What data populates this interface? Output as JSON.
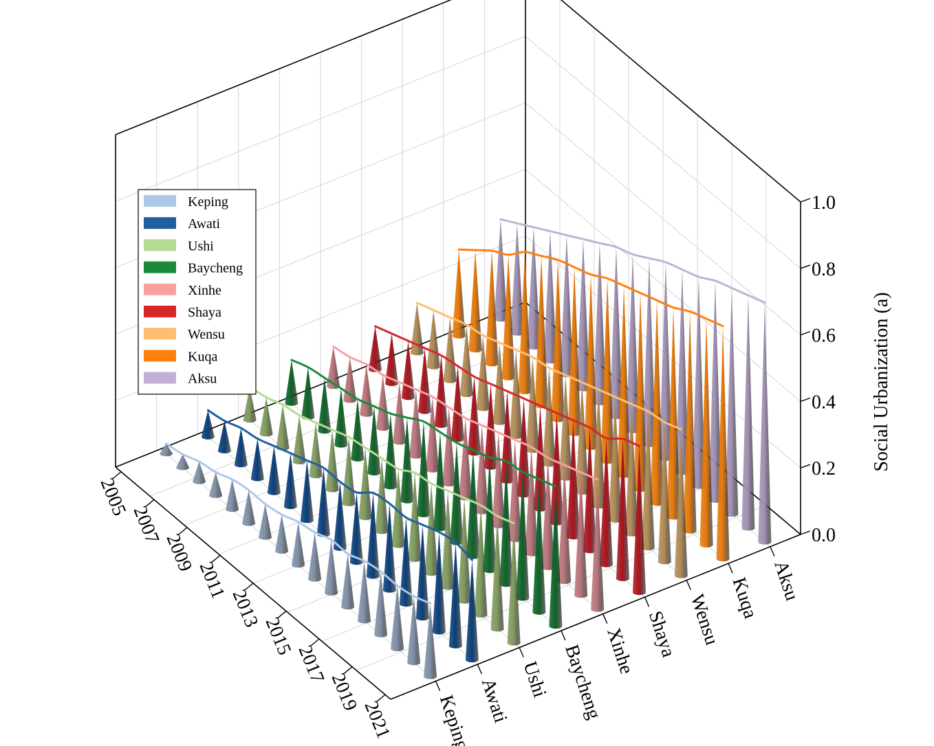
{
  "chart_data": {
    "type": "3d-bar",
    "ylabel": "Social Urbanization (a)",
    "zlim": [
      0,
      1.0
    ],
    "z_ticks": [
      "0.0",
      "0.2",
      "0.4",
      "0.6",
      "0.8",
      "1.0"
    ],
    "years": [
      "2005",
      "2006",
      "2007",
      "2008",
      "2009",
      "2010",
      "2011",
      "2012",
      "2013",
      "2014",
      "2015",
      "2016",
      "2017",
      "2018",
      "2019",
      "2020",
      "2021"
    ],
    "year_ticks": [
      "2005",
      "2007",
      "2009",
      "2011",
      "2013",
      "2015",
      "2017",
      "2019",
      "2021"
    ],
    "legend_position": "upper-left",
    "series": [
      {
        "name": "Keping",
        "color": "#aec7e8",
        "cone_color": "#7f8fa6",
        "values": [
          0.03,
          0.04,
          0.06,
          0.07,
          0.09,
          0.1,
          0.1,
          0.11,
          0.13,
          0.14,
          0.16,
          0.16,
          0.18,
          0.19,
          0.19,
          0.2,
          0.22
        ]
      },
      {
        "name": "Awati",
        "color": "#1f5fa0",
        "cone_color": "#0b3f7a",
        "values": [
          0.08,
          0.09,
          0.11,
          0.12,
          0.14,
          0.16,
          0.18,
          0.2,
          0.2,
          0.21,
          0.25,
          0.26,
          0.26,
          0.28,
          0.3,
          0.31,
          0.3
        ]
      },
      {
        "name": "Ushi",
        "color": "#b5dc92",
        "cone_color": "#7f9a5e",
        "values": [
          0.1,
          0.11,
          0.13,
          0.14,
          0.16,
          0.18,
          0.2,
          0.21,
          0.22,
          0.23,
          0.26,
          0.27,
          0.29,
          0.31,
          0.33,
          0.34,
          0.36
        ]
      },
      {
        "name": "Baycheng",
        "color": "#1a8a3a",
        "cone_color": "#0d6326",
        "values": [
          0.13,
          0.15,
          0.16,
          0.17,
          0.18,
          0.2,
          0.22,
          0.25,
          0.28,
          0.29,
          0.3,
          0.32,
          0.34,
          0.37,
          0.38,
          0.4,
          0.42
        ]
      },
      {
        "name": "Xinhe",
        "color": "#f8a0a0",
        "cone_color": "#b8737a",
        "values": [
          0.12,
          0.13,
          0.15,
          0.16,
          0.18,
          0.2,
          0.22,
          0.23,
          0.24,
          0.26,
          0.28,
          0.3,
          0.32,
          0.33,
          0.35,
          0.37,
          0.39
        ]
      },
      {
        "name": "Shaya",
        "color": "#d62728",
        "cone_color": "#a8141c",
        "values": [
          0.13,
          0.15,
          0.17,
          0.19,
          0.21,
          0.22,
          0.23,
          0.25,
          0.27,
          0.29,
          0.31,
          0.33,
          0.35,
          0.37,
          0.38,
          0.42,
          0.44
        ]
      },
      {
        "name": "Wensu",
        "color": "#fdbf6f",
        "cone_color": "#b08a55",
        "values": [
          0.15,
          0.17,
          0.19,
          0.21,
          0.22,
          0.24,
          0.26,
          0.28,
          0.29,
          0.31,
          0.33,
          0.35,
          0.37,
          0.39,
          0.41,
          0.42,
          0.44
        ]
      },
      {
        "name": "Kuqa",
        "color": "#ff7f0e",
        "cone_color": "#e5780a",
        "values": [
          0.26,
          0.3,
          0.34,
          0.37,
          0.42,
          0.45,
          0.48,
          0.5,
          0.52,
          0.55,
          0.57,
          0.59,
          0.61,
          0.63,
          0.66,
          0.68,
          0.7
        ]
      },
      {
        "name": "Aksu",
        "color": "#c5b0d5",
        "cone_color": "#9f90b0",
        "values": [
          0.3,
          0.33,
          0.36,
          0.39,
          0.42,
          0.45,
          0.48,
          0.51,
          0.53,
          0.56,
          0.59,
          0.61,
          0.63,
          0.66,
          0.68,
          0.7,
          0.72
        ]
      }
    ]
  }
}
